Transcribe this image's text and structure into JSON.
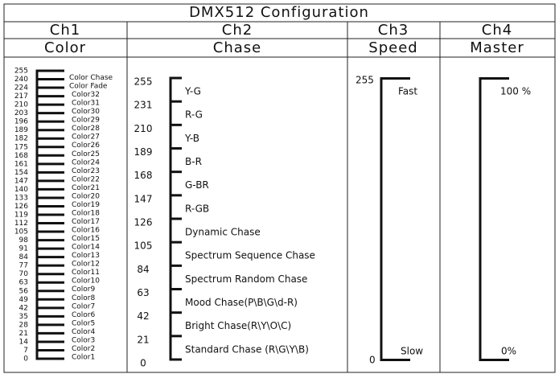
{
  "header": {
    "title": "DMX512 Configuration"
  },
  "columns": [
    {
      "channel": "Ch1",
      "name": "Color",
      "scale": [
        255,
        240,
        224,
        217,
        210,
        203,
        196,
        189,
        182,
        175,
        168,
        161,
        154,
        147,
        140,
        133,
        126,
        119,
        112,
        105,
        98,
        91,
        84,
        77,
        70,
        63,
        56,
        49,
        42,
        35,
        28,
        21,
        14,
        7,
        0
      ],
      "labels": [
        "Color Chase",
        "Color Fade",
        "Color32",
        "Color31",
        "Color30",
        "Color29",
        "Color28",
        "Color27",
        "Color26",
        "Color25",
        "Color24",
        "Color23",
        "Color22",
        "Color21",
        "Color20",
        "Color19",
        "Color18",
        "Color17",
        "Color16",
        "Color15",
        "Color14",
        "Color13",
        "Color12",
        "Color11",
        "Color10",
        "Color9",
        "Color8",
        "Color7",
        "Color6",
        "Color5",
        "Color4",
        "Color3",
        "Color2",
        "Color1"
      ]
    },
    {
      "channel": "Ch2",
      "name": "Chase",
      "scale": [
        255,
        231,
        210,
        189,
        168,
        147,
        126,
        105,
        84,
        63,
        42,
        21,
        0
      ],
      "labels": [
        "Y-G",
        "R-G",
        "Y-B",
        "B-R",
        "G-BR",
        "R-GB",
        "Dynamic Chase",
        "Spectrum Sequence Chase",
        "Spectrum Random Chase",
        "Mood Chase(P\\B\\G\\d-R)",
        "Bright Chase(R\\Y\\O\\C)",
        "Standard Chase (R\\G\\Y\\B)"
      ]
    },
    {
      "channel": "Ch3",
      "name": "Speed",
      "scale": [
        255,
        0
      ],
      "labels": [
        "Fast",
        "Slow"
      ]
    },
    {
      "channel": "Ch4",
      "name": "Master",
      "labels": [
        "100 %",
        "0%"
      ]
    }
  ]
}
